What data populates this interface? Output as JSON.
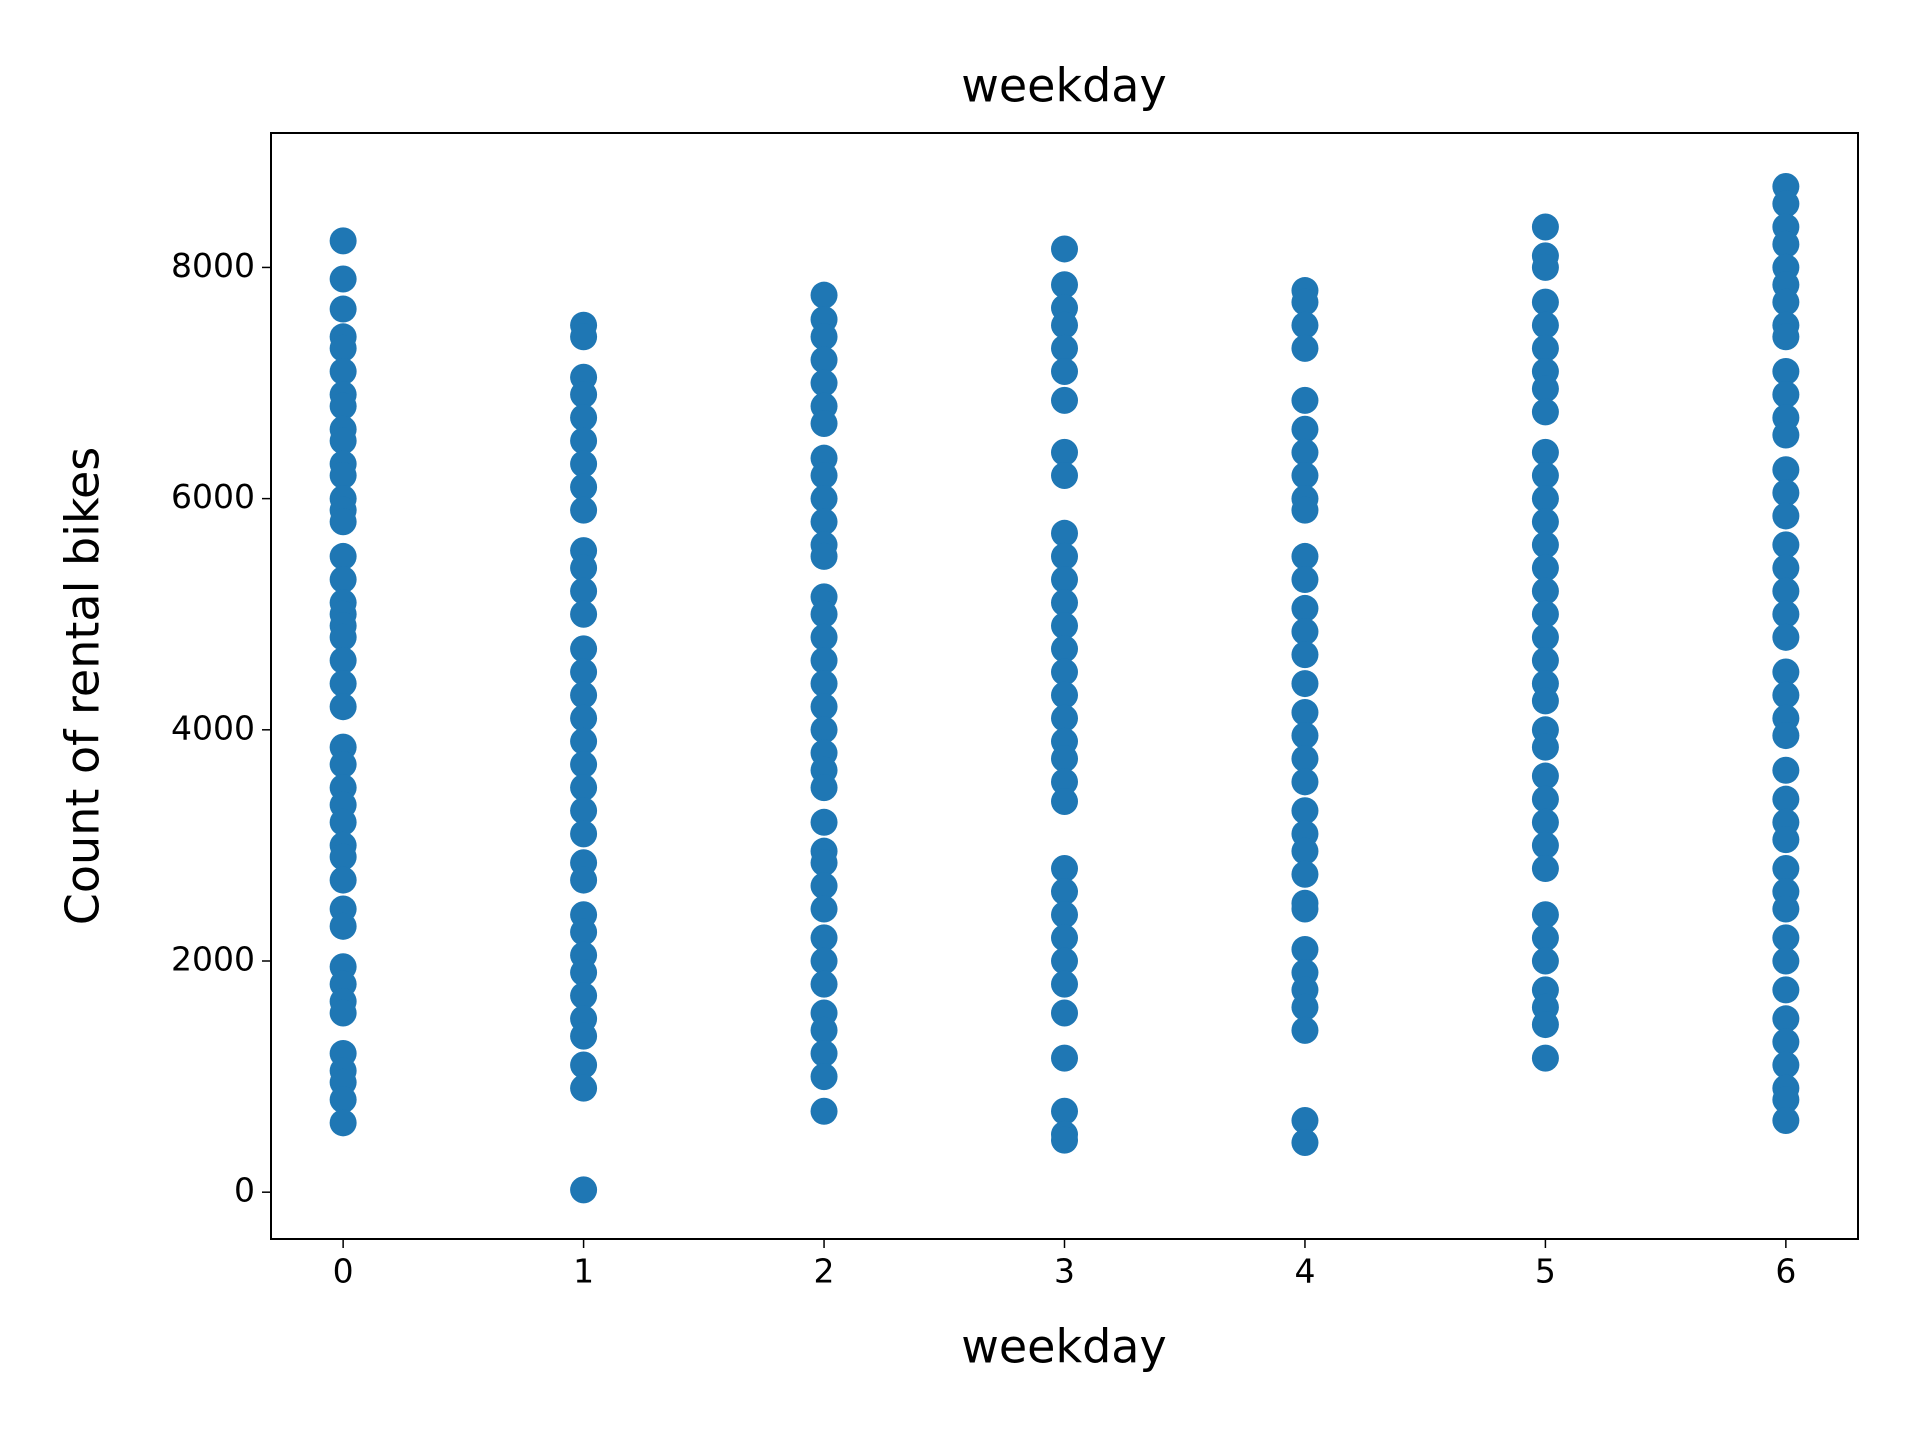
{
  "chart_data": {
    "type": "scatter",
    "title": "weekday",
    "x_label": "weekday",
    "y_label": "Count of rental bikes",
    "color": "#1f77b4",
    "x": [
      0,
      0,
      0,
      0,
      0,
      0,
      0,
      0,
      0,
      0,
      0,
      0,
      0,
      0,
      0,
      0,
      0,
      0,
      0,
      0,
      0,
      0,
      0,
      0,
      0,
      0,
      0,
      0,
      0,
      0,
      0,
      0,
      0,
      0,
      0,
      0,
      0,
      0,
      0,
      0,
      0,
      0,
      0,
      1,
      1,
      1,
      1,
      1,
      1,
      1,
      1,
      1,
      1,
      1,
      1,
      1,
      1,
      1,
      1,
      1,
      1,
      1,
      1,
      1,
      1,
      1,
      1,
      1,
      1,
      1,
      1,
      1,
      1,
      1,
      1,
      1,
      1,
      2,
      2,
      2,
      2,
      2,
      2,
      2,
      2,
      2,
      2,
      2,
      2,
      2,
      2,
      2,
      2,
      2,
      2,
      2,
      2,
      2,
      2,
      2,
      2,
      2,
      2,
      2,
      2,
      2,
      2,
      2,
      2,
      2,
      2,
      2,
      2,
      3,
      3,
      3,
      3,
      3,
      3,
      3,
      3,
      3,
      3,
      3,
      3,
      3,
      3,
      3,
      3,
      3,
      3,
      3,
      3,
      3,
      3,
      3,
      3,
      3,
      3,
      3,
      3,
      3,
      3,
      3,
      3,
      3,
      4,
      4,
      4,
      4,
      4,
      4,
      4,
      4,
      4,
      4,
      4,
      4,
      4,
      4,
      4,
      4,
      4,
      4,
      4,
      4,
      4,
      4,
      4,
      4,
      4,
      4,
      4,
      4,
      4,
      4,
      4,
      4,
      4,
      5,
      5,
      5,
      5,
      5,
      5,
      5,
      5,
      5,
      5,
      5,
      5,
      5,
      5,
      5,
      5,
      5,
      5,
      5,
      5,
      5,
      5,
      5,
      5,
      5,
      5,
      5,
      5,
      5,
      5,
      5,
      5,
      5,
      5,
      5,
      6,
      6,
      6,
      6,
      6,
      6,
      6,
      6,
      6,
      6,
      6,
      6,
      6,
      6,
      6,
      6,
      6,
      6,
      6,
      6,
      6,
      6,
      6,
      6,
      6,
      6,
      6,
      6,
      6,
      6,
      6,
      6,
      6,
      6,
      6,
      6,
      6,
      6,
      6,
      6,
      6
    ],
    "values": [
      8230,
      7900,
      7640,
      7400,
      7300,
      7100,
      6900,
      6800,
      6600,
      6500,
      6300,
      6200,
      6000,
      5900,
      5800,
      5500,
      5300,
      5100,
      5000,
      4900,
      4800,
      4600,
      4400,
      4200,
      3850,
      3700,
      3500,
      3350,
      3200,
      3000,
      2900,
      2700,
      2450,
      2300,
      1950,
      1800,
      1650,
      1550,
      1200,
      1050,
      950,
      800,
      600,
      7500,
      7400,
      7050,
      6900,
      6700,
      6500,
      6300,
      6100,
      5900,
      5550,
      5400,
      5200,
      5000,
      4700,
      4500,
      4300,
      4100,
      3900,
      3700,
      3500,
      3300,
      3100,
      2850,
      2700,
      2400,
      2250,
      2050,
      1900,
      1700,
      1500,
      1350,
      1100,
      900,
      20,
      7760,
      7550,
      7400,
      7200,
      7000,
      6800,
      6650,
      6350,
      6200,
      6000,
      5800,
      5600,
      5500,
      5150,
      5000,
      4800,
      4600,
      4400,
      4200,
      4000,
      3800,
      3650,
      3500,
      3200,
      2950,
      2850,
      2650,
      2450,
      2200,
      2000,
      1800,
      1550,
      1400,
      1200,
      1000,
      700,
      8160,
      7850,
      7650,
      7500,
      7300,
      7100,
      6850,
      6400,
      6200,
      5700,
      5500,
      5300,
      5100,
      4900,
      4700,
      4500,
      4300,
      4100,
      3900,
      3750,
      3550,
      3380,
      2800,
      2600,
      2400,
      2200,
      2000,
      1800,
      1550,
      1160,
      700,
      500,
      450,
      7800,
      7700,
      7500,
      7300,
      6850,
      6600,
      6400,
      6200,
      6000,
      5900,
      5500,
      5300,
      5050,
      4850,
      4650,
      4400,
      4150,
      3950,
      3750,
      3550,
      3300,
      3100,
      2950,
      2750,
      2500,
      2450,
      2100,
      1900,
      1750,
      1600,
      1400,
      620,
      430,
      8350,
      8100,
      8000,
      7700,
      7500,
      7300,
      7100,
      6950,
      6750,
      6400,
      6200,
      6000,
      5800,
      5600,
      5400,
      5200,
      5000,
      4800,
      4600,
      4400,
      4250,
      4000,
      3850,
      3600,
      3400,
      3200,
      3000,
      2800,
      2400,
      2200,
      2000,
      1750,
      1600,
      1450,
      1160,
      8700,
      8550,
      8350,
      8200,
      8000,
      7850,
      7700,
      7500,
      7400,
      7100,
      6900,
      6700,
      6550,
      6250,
      6050,
      5850,
      5600,
      5400,
      5200,
      5000,
      4800,
      4500,
      4300,
      4100,
      3950,
      3650,
      3400,
      3200,
      3050,
      2800,
      2600,
      2450,
      2200,
      2000,
      1750,
      1500,
      1300,
      1100,
      900,
      800,
      620
    ],
    "xlim": [
      -0.3,
      6.3
    ],
    "xticks": [
      0,
      1,
      2,
      3,
      4,
      5,
      6
    ],
    "ylim": [
      -405,
      9163
    ],
    "yticks": [
      0,
      2000,
      4000,
      6000,
      8000
    ]
  }
}
